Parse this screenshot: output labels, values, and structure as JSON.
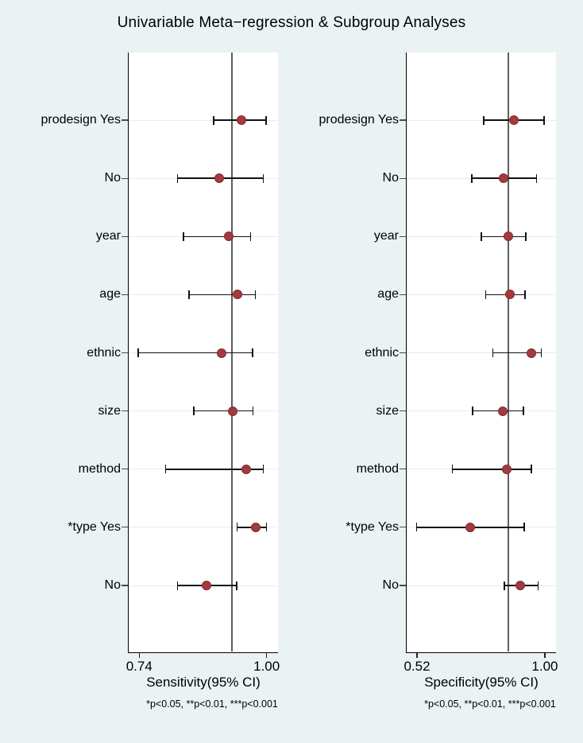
{
  "title": "Univariable Meta−regression & Subgroup Analyses",
  "colors": {
    "background": "#eaf2f3",
    "plot_background": "#ffffff",
    "axis": "#000000",
    "reference_line": "#5e5e5e",
    "gridline": "#ebebeb",
    "marker_fill": "#a23a40",
    "marker_border": "#84292e",
    "ci": "#111111",
    "y_tick": "#4a4a4a",
    "x_tick": "#222222",
    "text": "#000000"
  },
  "chart_data": [
    {
      "type": "scatter",
      "subtype": "forest-plot",
      "xlabel": "Sensitivity(95% CI)",
      "note": "*p<0.05, **p<0.01, ***p<0.001",
      "legend": "none",
      "grid": "horizontal",
      "xlim": [
        0.7185,
        1.0232
      ],
      "xticks": [
        {
          "value": 0.74,
          "label": "0.74"
        },
        {
          "value": 1.0,
          "label": "1.00"
        }
      ],
      "ref_line": 0.93,
      "rows": [
        {
          "label": "prodesign Yes",
          "est": 0.949,
          "lo": 0.892,
          "hi": 0.999
        },
        {
          "label": "No",
          "est": 0.904,
          "lo": 0.818,
          "hi": 0.993
        },
        {
          "label": "year",
          "est": 0.922,
          "lo": 0.83,
          "hi": 0.967
        },
        {
          "label": "age",
          "est": 0.94,
          "lo": 0.842,
          "hi": 0.977
        },
        {
          "label": "ethnic",
          "est": 0.908,
          "lo": 0.738,
          "hi": 0.971
        },
        {
          "label": "size",
          "est": 0.931,
          "lo": 0.851,
          "hi": 0.972
        },
        {
          "label": "method",
          "est": 0.958,
          "lo": 0.794,
          "hi": 0.993
        },
        {
          "label": "*type Yes",
          "est": 0.978,
          "lo": 0.94,
          "hi": 1.0
        },
        {
          "label": "No",
          "est": 0.878,
          "lo": 0.818,
          "hi": 0.939
        }
      ]
    },
    {
      "type": "scatter",
      "subtype": "forest-plot",
      "xlabel": "Specificity(95% CI)",
      "note": "*p<0.05, **p<0.01, ***p<0.001",
      "legend": "none",
      "grid": "horizontal",
      "xlim": [
        0.4812,
        1.0418
      ],
      "xticks": [
        {
          "value": 0.52,
          "label": "0.52"
        },
        {
          "value": 1.0,
          "label": "1.00"
        }
      ],
      "ref_line": 0.863,
      "rows": [
        {
          "label": "prodesign Yes",
          "est": 0.885,
          "lo": 0.77,
          "hi": 0.997
        },
        {
          "label": "No",
          "est": 0.845,
          "lo": 0.726,
          "hi": 0.969
        },
        {
          "label": "year",
          "est": 0.863,
          "lo": 0.761,
          "hi": 0.928
        },
        {
          "label": "age",
          "est": 0.87,
          "lo": 0.778,
          "hi": 0.925
        },
        {
          "label": "ethnic",
          "est": 0.95,
          "lo": 0.805,
          "hi": 0.986
        },
        {
          "label": "size",
          "est": 0.843,
          "lo": 0.728,
          "hi": 0.919
        },
        {
          "label": "method",
          "est": 0.857,
          "lo": 0.652,
          "hi": 0.95
        },
        {
          "label": "*type Yes",
          "est": 0.721,
          "lo": 0.519,
          "hi": 0.923
        },
        {
          "label": "No",
          "est": 0.908,
          "lo": 0.848,
          "hi": 0.974
        }
      ]
    }
  ]
}
